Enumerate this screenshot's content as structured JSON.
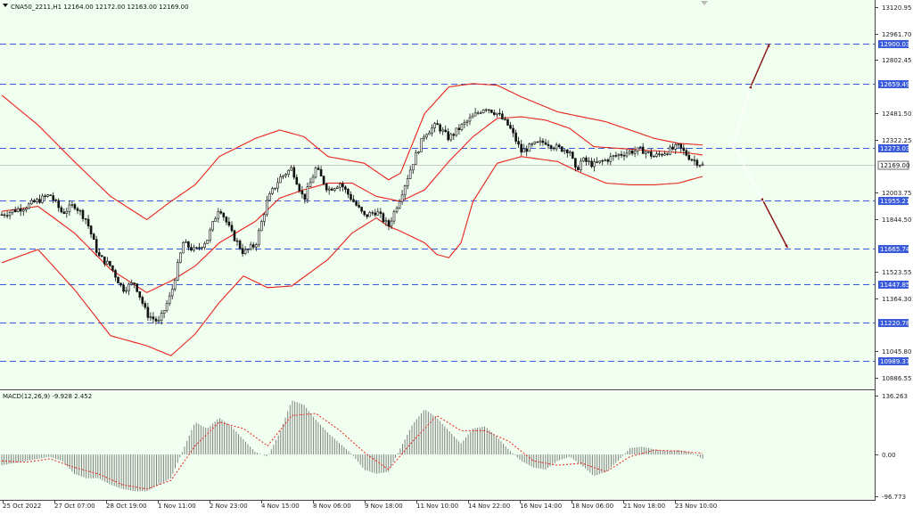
{
  "header": {
    "menu_icon": "triangle-down-icon",
    "title": "CNA50_2211,H1  12164.00 12172.00 12163.00 12169.00"
  },
  "macd_panel": {
    "title": "MACD(12,26,9) -9.928 2.452"
  },
  "colors": {
    "background": "#F0FFF0",
    "bollinger": "#E8231C",
    "level_line": "#3A5BD9",
    "arrow": "#8B1A1A",
    "candle": "#111111",
    "macd_hist": "#808080",
    "signal": "#E8231C",
    "current_price_box": "#FFFFFF"
  },
  "chart_data": [
    {
      "type": "candlestick",
      "symbol": "CNA50_2211",
      "timeframe": "H1",
      "ylim": [
        10800,
        13180
      ],
      "price_ticks": [
        "13120.95",
        "12961.70",
        "12802.45",
        "12481.50",
        "12322.25",
        "12003.75",
        "11844.50",
        "11523.55",
        "11364.30",
        "11045.80",
        "10886.55"
      ],
      "price_tick_values": [
        13120.95,
        12961.7,
        12802.45,
        12481.5,
        12322.25,
        12003.75,
        11844.5,
        11523.55,
        11364.3,
        11045.8,
        10886.55
      ],
      "time_labels": [
        "25 Oct 2022",
        "27 Oct 07:00",
        "28 Oct 19:00",
        "1 Nov 11:00",
        "2 Nov 23:00",
        "4 Nov 15:00",
        "8 Nov 06:00",
        "9 Nov 18:00",
        "11 Nov 10:00",
        "14 Nov 22:00",
        "16 Nov 14:00",
        "18 Nov 06:00",
        "21 Nov 18:00",
        "23 Nov 10:00"
      ],
      "horizontal_levels": [
        {
          "label": "12900.03",
          "value": 12900.03
        },
        {
          "label": "12659.49",
          "value": 12659.49
        },
        {
          "label": "12273.03",
          "value": 12273.03
        },
        {
          "label": "11955.21",
          "value": 11955.21
        },
        {
          "label": "11665.74",
          "value": 11665.74
        },
        {
          "label": "11447.85",
          "value": 11447.85
        },
        {
          "label": "11220.78",
          "value": 11220.78
        },
        {
          "label": "10989.37",
          "value": 10989.37
        }
      ],
      "current_price": {
        "label": "12169.00",
        "value": 12169.0
      },
      "ohlc_last": {
        "open": 12164.0,
        "high": 12172.0,
        "low": 12163.0,
        "close": 12169.0
      },
      "close_path": [
        [
          0,
          11870
        ],
        [
          4,
          11920
        ],
        [
          8,
          11990
        ],
        [
          10,
          11880
        ],
        [
          12,
          11930
        ],
        [
          14,
          11840
        ],
        [
          16,
          11620
        ],
        [
          18,
          11560
        ],
        [
          20,
          11420
        ],
        [
          22,
          11460
        ],
        [
          24,
          11270
        ],
        [
          26,
          11220
        ],
        [
          28,
          11390
        ],
        [
          30,
          11700
        ],
        [
          32,
          11650
        ],
        [
          34,
          11720
        ],
        [
          36,
          11920
        ],
        [
          38,
          11760
        ],
        [
          40,
          11640
        ],
        [
          42,
          11690
        ],
        [
          44,
          11960
        ],
        [
          46,
          12090
        ],
        [
          48,
          12150
        ],
        [
          50,
          11960
        ],
        [
          52,
          12150
        ],
        [
          54,
          12020
        ],
        [
          56,
          12060
        ],
        [
          58,
          11960
        ],
        [
          60,
          11860
        ],
        [
          62,
          11890
        ],
        [
          64,
          11800
        ],
        [
          66,
          11980
        ],
        [
          68,
          12180
        ],
        [
          70,
          12360
        ],
        [
          72,
          12410
        ],
        [
          74,
          12330
        ],
        [
          76,
          12400
        ],
        [
          78,
          12460
        ],
        [
          80,
          12520
        ],
        [
          82,
          12480
        ],
        [
          84,
          12400
        ],
        [
          86,
          12250
        ],
        [
          88,
          12290
        ],
        [
          90,
          12310
        ],
        [
          92,
          12270
        ],
        [
          94,
          12260
        ],
        [
          95,
          12130
        ],
        [
          96,
          12200
        ],
        [
          98,
          12170
        ],
        [
          100,
          12200
        ],
        [
          102,
          12230
        ],
        [
          104,
          12250
        ],
        [
          106,
          12260
        ],
        [
          108,
          12220
        ],
        [
          110,
          12250
        ],
        [
          112,
          12280
        ],
        [
          114,
          12210
        ],
        [
          116,
          12169
        ]
      ],
      "bollinger_upper": [
        [
          0,
          12590
        ],
        [
          6,
          12410
        ],
        [
          12,
          12190
        ],
        [
          18,
          11980
        ],
        [
          24,
          11840
        ],
        [
          28,
          11950
        ],
        [
          32,
          12050
        ],
        [
          36,
          12220
        ],
        [
          42,
          12330
        ],
        [
          46,
          12380
        ],
        [
          50,
          12340
        ],
        [
          54,
          12220
        ],
        [
          60,
          12180
        ],
        [
          64,
          12080
        ],
        [
          66,
          12120
        ],
        [
          70,
          12480
        ],
        [
          74,
          12640
        ],
        [
          78,
          12660
        ],
        [
          82,
          12650
        ],
        [
          86,
          12580
        ],
        [
          92,
          12490
        ],
        [
          96,
          12460
        ],
        [
          100,
          12430
        ],
        [
          104,
          12380
        ],
        [
          108,
          12330
        ],
        [
          112,
          12300
        ],
        [
          116,
          12290
        ]
      ],
      "bollinger_middle": [
        [
          0,
          11890
        ],
        [
          6,
          11920
        ],
        [
          12,
          11760
        ],
        [
          18,
          11540
        ],
        [
          24,
          11400
        ],
        [
          28,
          11470
        ],
        [
          32,
          11560
        ],
        [
          36,
          11700
        ],
        [
          42,
          11830
        ],
        [
          46,
          11970
        ],
        [
          50,
          12020
        ],
        [
          54,
          12060
        ],
        [
          58,
          12060
        ],
        [
          62,
          11980
        ],
        [
          66,
          11950
        ],
        [
          70,
          12020
        ],
        [
          74,
          12190
        ],
        [
          78,
          12340
        ],
        [
          82,
          12450
        ],
        [
          86,
          12460
        ],
        [
          90,
          12440
        ],
        [
          94,
          12390
        ],
        [
          98,
          12280
        ],
        [
          102,
          12270
        ],
        [
          106,
          12260
        ],
        [
          110,
          12250
        ],
        [
          114,
          12240
        ],
        [
          116,
          12230
        ]
      ],
      "bollinger_lower": [
        [
          0,
          11580
        ],
        [
          6,
          11660
        ],
        [
          12,
          11420
        ],
        [
          18,
          11140
        ],
        [
          24,
          11080
        ],
        [
          28,
          11020
        ],
        [
          32,
          11150
        ],
        [
          36,
          11340
        ],
        [
          40,
          11500
        ],
        [
          44,
          11430
        ],
        [
          48,
          11440
        ],
        [
          54,
          11600
        ],
        [
          58,
          11760
        ],
        [
          62,
          11850
        ],
        [
          64,
          11800
        ],
        [
          66,
          11770
        ],
        [
          70,
          11700
        ],
        [
          72,
          11630
        ],
        [
          74,
          11610
        ],
        [
          76,
          11700
        ],
        [
          78,
          11950
        ],
        [
          82,
          12180
        ],
        [
          86,
          12220
        ],
        [
          92,
          12190
        ],
        [
          96,
          12120
        ],
        [
          100,
          12060
        ],
        [
          104,
          12050
        ],
        [
          108,
          12050
        ],
        [
          112,
          12060
        ],
        [
          116,
          12100
        ]
      ],
      "forecast_arrows": [
        {
          "from": [
            119,
            12290
          ],
          "via": [
            122,
            12650
          ],
          "to": [
            125,
            12900
          ],
          "direction": "up"
        },
        {
          "from": [
            119,
            12290
          ],
          "via": [
            124,
            11950
          ],
          "to": [
            128,
            11670
          ],
          "direction": "down"
        }
      ]
    },
    {
      "type": "macd",
      "title": "MACD(12,26,9) -9.928 2.452",
      "params": [
        12,
        26,
        9
      ],
      "macd_value": -9.928,
      "signal_value": 2.452,
      "ylim": [
        -96.773,
        136.263
      ],
      "tick_labels": [
        "136.263",
        "0.00",
        "-96.773"
      ],
      "tick_values": [
        136.263,
        0.0,
        -96.773
      ],
      "histogram": [
        [
          0,
          -25
        ],
        [
          4,
          -15
        ],
        [
          6,
          -10
        ],
        [
          8,
          -5
        ],
        [
          10,
          -15
        ],
        [
          12,
          -45
        ],
        [
          14,
          -55
        ],
        [
          16,
          -55
        ],
        [
          18,
          -70
        ],
        [
          20,
          -80
        ],
        [
          22,
          -85
        ],
        [
          24,
          -85
        ],
        [
          26,
          -70
        ],
        [
          28,
          -55
        ],
        [
          30,
          10
        ],
        [
          32,
          75
        ],
        [
          34,
          60
        ],
        [
          36,
          85
        ],
        [
          38,
          65
        ],
        [
          40,
          35
        ],
        [
          42,
          5
        ],
        [
          44,
          -5
        ],
        [
          46,
          50
        ],
        [
          48,
          125
        ],
        [
          50,
          115
        ],
        [
          52,
          80
        ],
        [
          54,
          50
        ],
        [
          56,
          25
        ],
        [
          58,
          0
        ],
        [
          60,
          -35
        ],
        [
          62,
          -45
        ],
        [
          64,
          -40
        ],
        [
          66,
          15
        ],
        [
          68,
          70
        ],
        [
          70,
          105
        ],
        [
          72,
          85
        ],
        [
          74,
          55
        ],
        [
          76,
          25
        ],
        [
          78,
          60
        ],
        [
          80,
          65
        ],
        [
          82,
          40
        ],
        [
          84,
          10
        ],
        [
          86,
          -15
        ],
        [
          88,
          -30
        ],
        [
          90,
          -35
        ],
        [
          92,
          -15
        ],
        [
          94,
          -5
        ],
        [
          96,
          -25
        ],
        [
          98,
          -50
        ],
        [
          100,
          -40
        ],
        [
          102,
          -15
        ],
        [
          104,
          15
        ],
        [
          106,
          18
        ],
        [
          108,
          12
        ],
        [
          110,
          8
        ],
        [
          112,
          10
        ],
        [
          114,
          5
        ],
        [
          116,
          -10
        ]
      ],
      "signal_line": [
        [
          0,
          -15
        ],
        [
          4,
          -18
        ],
        [
          8,
          -10
        ],
        [
          12,
          -30
        ],
        [
          16,
          -45
        ],
        [
          20,
          -70
        ],
        [
          24,
          -80
        ],
        [
          28,
          -60
        ],
        [
          32,
          20
        ],
        [
          36,
          75
        ],
        [
          40,
          60
        ],
        [
          44,
          20
        ],
        [
          48,
          90
        ],
        [
          52,
          95
        ],
        [
          56,
          55
        ],
        [
          60,
          5
        ],
        [
          64,
          -35
        ],
        [
          68,
          30
        ],
        [
          72,
          90
        ],
        [
          76,
          55
        ],
        [
          80,
          55
        ],
        [
          84,
          30
        ],
        [
          88,
          -15
        ],
        [
          92,
          -25
        ],
        [
          96,
          -20
        ],
        [
          100,
          -40
        ],
        [
          104,
          -5
        ],
        [
          108,
          10
        ],
        [
          112,
          8
        ],
        [
          116,
          2.452
        ]
      ]
    }
  ]
}
